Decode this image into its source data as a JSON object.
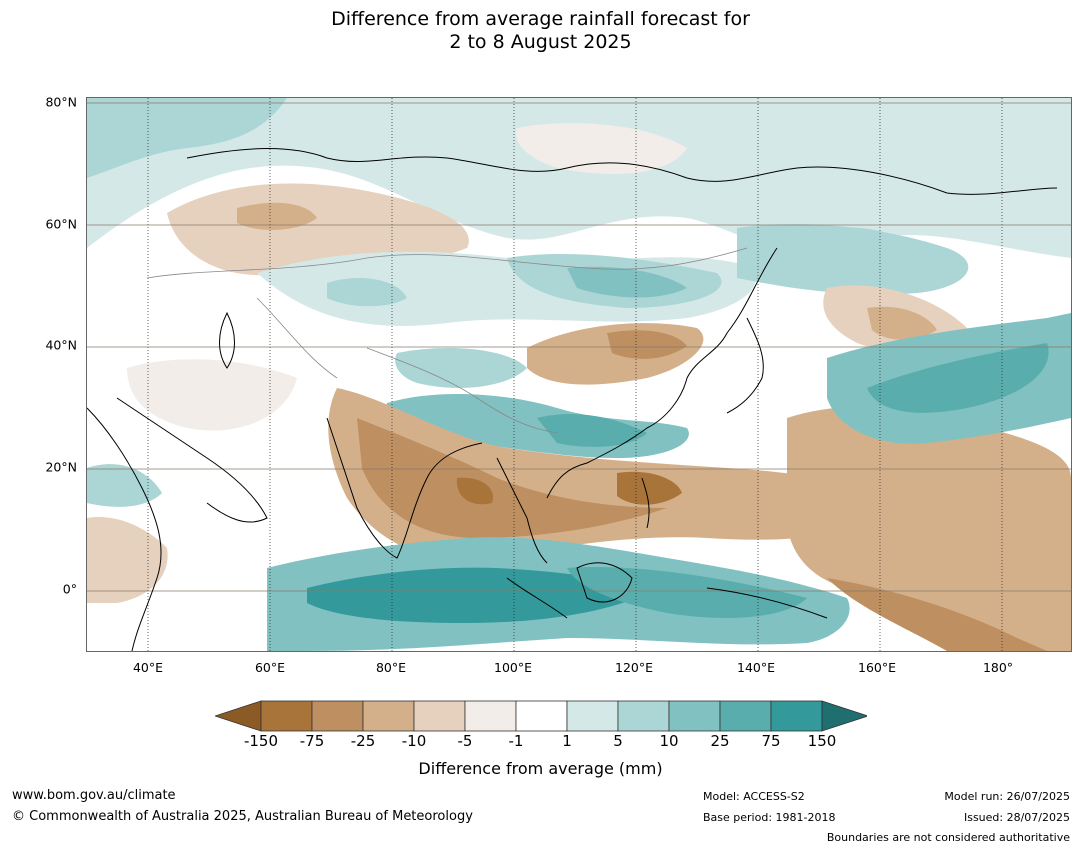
{
  "title": {
    "line1": "Difference from average rainfall forecast for",
    "line2": "2 to 8 August 2025"
  },
  "map": {
    "lat_labels": [
      "80°N",
      "60°N",
      "40°N",
      "20°N",
      "0°"
    ],
    "lon_labels": [
      "40°E",
      "60°E",
      "80°E",
      "100°E",
      "120°E",
      "140°E",
      "160°E",
      "180°"
    ],
    "extent": {
      "lon_min": 30,
      "lon_max": 191,
      "lat_min": -10,
      "lat_max": 80
    }
  },
  "colorbar": {
    "ticks": [
      "-150",
      "-75",
      "-25",
      "-10",
      "-5",
      "-1",
      "1",
      "5",
      "10",
      "25",
      "75",
      "150"
    ],
    "colors": [
      "#8c5a24",
      "#a97439",
      "#be8f60",
      "#d4b08a",
      "#e5d1bd",
      "#f2ede8",
      "#ffffff",
      "#d5e8e8",
      "#acd5d5",
      "#82c1c1",
      "#5aadad",
      "#33999a",
      "#1f6f70"
    ],
    "label": "Difference from average (mm)"
  },
  "footer": {
    "website": "www.bom.gov.au/climate",
    "copyright": "© Commonwealth of Australia 2025, Australian Bureau of Meteorology",
    "model": "Model: ACCESS-S2",
    "base_period": "Base period: 1981-2018",
    "model_run": "Model run: 26/07/2025",
    "issued": "Issued: 28/07/2025",
    "disclaimer": "Boundaries are not considered authoritative"
  }
}
